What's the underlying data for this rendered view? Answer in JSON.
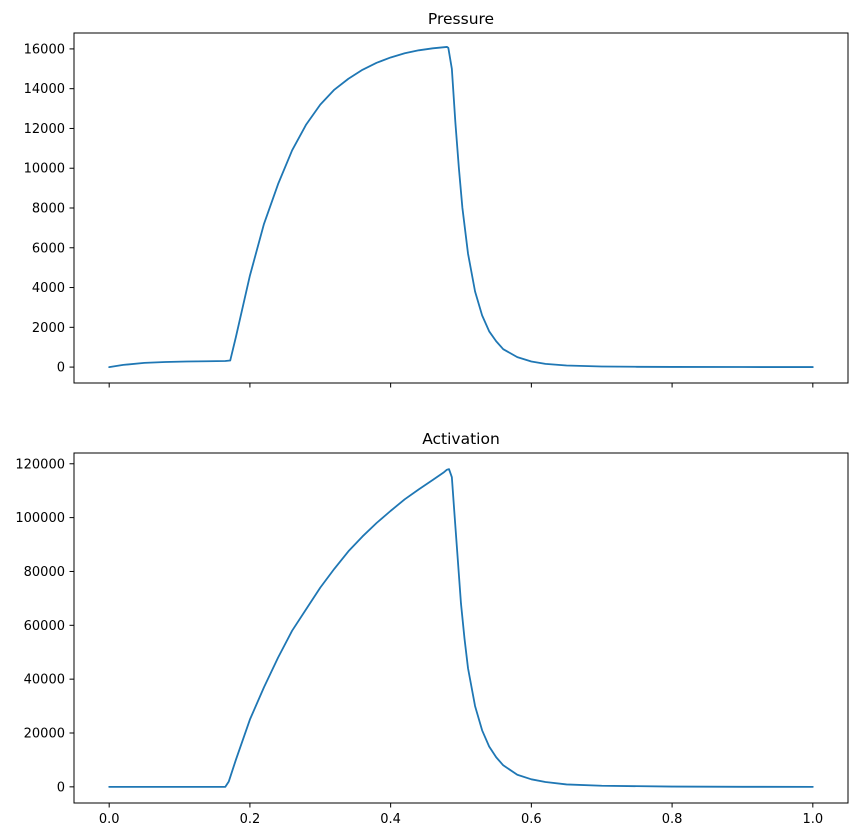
{
  "chart_data": [
    {
      "type": "line",
      "title": "Pressure",
      "xlabel": "",
      "ylabel": "",
      "xlim": [
        -0.05,
        1.05
      ],
      "ylim": [
        -800,
        16800
      ],
      "xticks": [
        0.0,
        0.2,
        0.4,
        0.6,
        0.8,
        1.0
      ],
      "xtick_labels_visible": false,
      "yticks": [
        0,
        2000,
        4000,
        6000,
        8000,
        10000,
        12000,
        14000,
        16000
      ],
      "ytick_labels": [
        "0",
        "2000",
        "4000",
        "6000",
        "8000",
        "10000",
        "12000",
        "14000",
        "16000"
      ],
      "grid": false,
      "series": [
        {
          "color": "#1f77b4",
          "x": [
            0.0,
            0.02,
            0.05,
            0.08,
            0.11,
            0.14,
            0.165,
            0.172,
            0.18,
            0.2,
            0.22,
            0.24,
            0.26,
            0.28,
            0.3,
            0.32,
            0.34,
            0.36,
            0.38,
            0.4,
            0.42,
            0.44,
            0.46,
            0.48,
            0.482,
            0.487,
            0.492,
            0.497,
            0.502,
            0.51,
            0.52,
            0.53,
            0.54,
            0.55,
            0.56,
            0.58,
            0.6,
            0.62,
            0.65,
            0.7,
            0.75,
            0.8,
            0.9,
            1.0
          ],
          "y": [
            0,
            110,
            210,
            255,
            280,
            295,
            305,
            330,
            1500,
            4600,
            7200,
            9200,
            10900,
            12200,
            13200,
            13950,
            14500,
            14950,
            15300,
            15570,
            15780,
            15930,
            16030,
            16100,
            16050,
            15000,
            12300,
            10000,
            8000,
            5700,
            3800,
            2600,
            1800,
            1300,
            900,
            500,
            280,
            160,
            80,
            30,
            15,
            8,
            3,
            1
          ]
        }
      ]
    },
    {
      "type": "line",
      "title": "Activation",
      "xlabel": "",
      "ylabel": "",
      "xlim": [
        -0.05,
        1.05
      ],
      "ylim": [
        -6000,
        124000
      ],
      "xticks": [
        0.0,
        0.2,
        0.4,
        0.6,
        0.8,
        1.0
      ],
      "xtick_labels": [
        "0.0",
        "0.2",
        "0.4",
        "0.6",
        "0.8",
        "1.0"
      ],
      "yticks": [
        0,
        20000,
        40000,
        60000,
        80000,
        100000,
        120000
      ],
      "ytick_labels": [
        "0",
        "20000",
        "40000",
        "60000",
        "80000",
        "100000",
        "120000"
      ],
      "grid": false,
      "series": [
        {
          "color": "#1f77b4",
          "x": [
            0.0,
            0.1,
            0.165,
            0.17,
            0.18,
            0.2,
            0.22,
            0.24,
            0.26,
            0.28,
            0.3,
            0.32,
            0.34,
            0.36,
            0.38,
            0.4,
            0.42,
            0.44,
            0.46,
            0.475,
            0.48,
            0.483,
            0.487,
            0.49,
            0.495,
            0.5,
            0.505,
            0.51,
            0.52,
            0.53,
            0.54,
            0.55,
            0.56,
            0.58,
            0.6,
            0.62,
            0.65,
            0.7,
            0.8,
            0.9,
            1.0
          ],
          "y": [
            0,
            0,
            0,
            2000,
            10000,
            25000,
            37000,
            48000,
            58000,
            66000,
            74000,
            81000,
            87500,
            93000,
            98000,
            102500,
            106800,
            110500,
            114000,
            116700,
            117800,
            118000,
            115000,
            104000,
            86000,
            68000,
            55000,
            44000,
            30000,
            21000,
            15000,
            11000,
            8000,
            4500,
            2800,
            1800,
            900,
            400,
            100,
            20,
            0
          ]
        }
      ]
    }
  ]
}
